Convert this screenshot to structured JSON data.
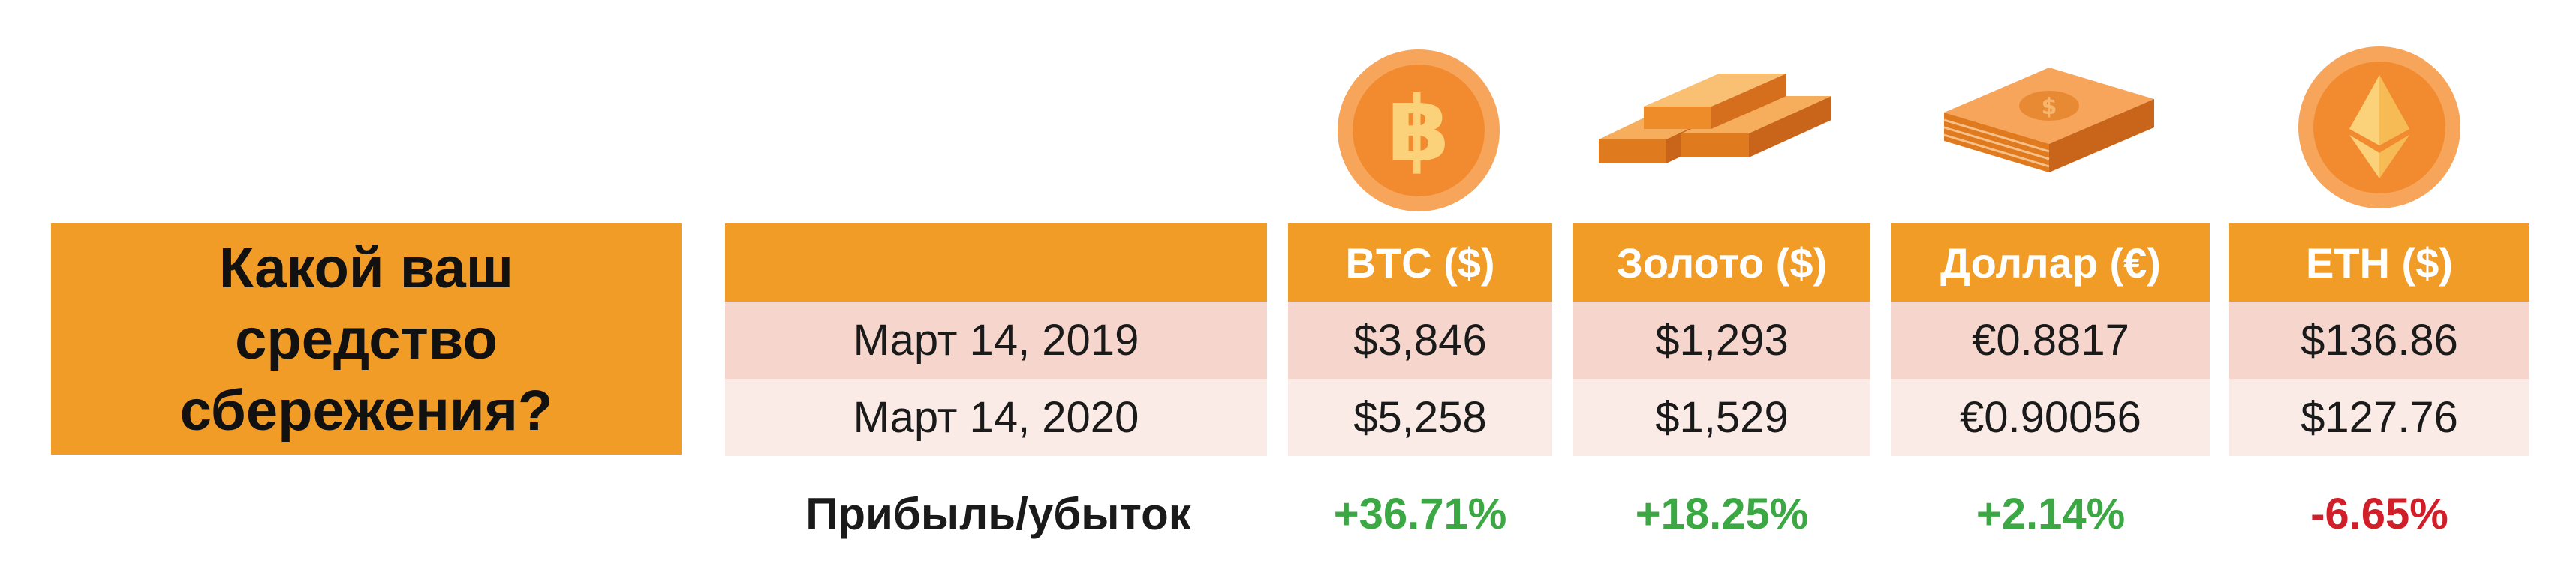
{
  "title": "Какой ваш средство сбережения?",
  "profit_label": "Прибыль/убыток",
  "colors": {
    "accent": "#F09C27",
    "positive": "#3BA844",
    "negative": "#D11F2A",
    "row1": "#F6D6CC",
    "row2": "#FBEBE6"
  },
  "icons": [
    "bitcoin-coin-icon",
    "gold-bars-icon",
    "dollar-stack-icon",
    "ethereum-coin-icon"
  ],
  "chart_data": {
    "type": "table",
    "columns": [
      "BTC ($)",
      "Золото ($)",
      "Доллар (€)",
      "ETH ($)"
    ],
    "rows": [
      {
        "date": "Март 14, 2019",
        "values": [
          "$3,846",
          "$1,293",
          "€0.8817",
          "$136.86"
        ]
      },
      {
        "date": "Март 14, 2020",
        "values": [
          "$5,258",
          "$1,529",
          "€0.90056",
          "$127.76"
        ]
      }
    ],
    "change": [
      "+36.71%",
      "+18.25%",
      "+2.14%",
      "-6.65%"
    ]
  }
}
